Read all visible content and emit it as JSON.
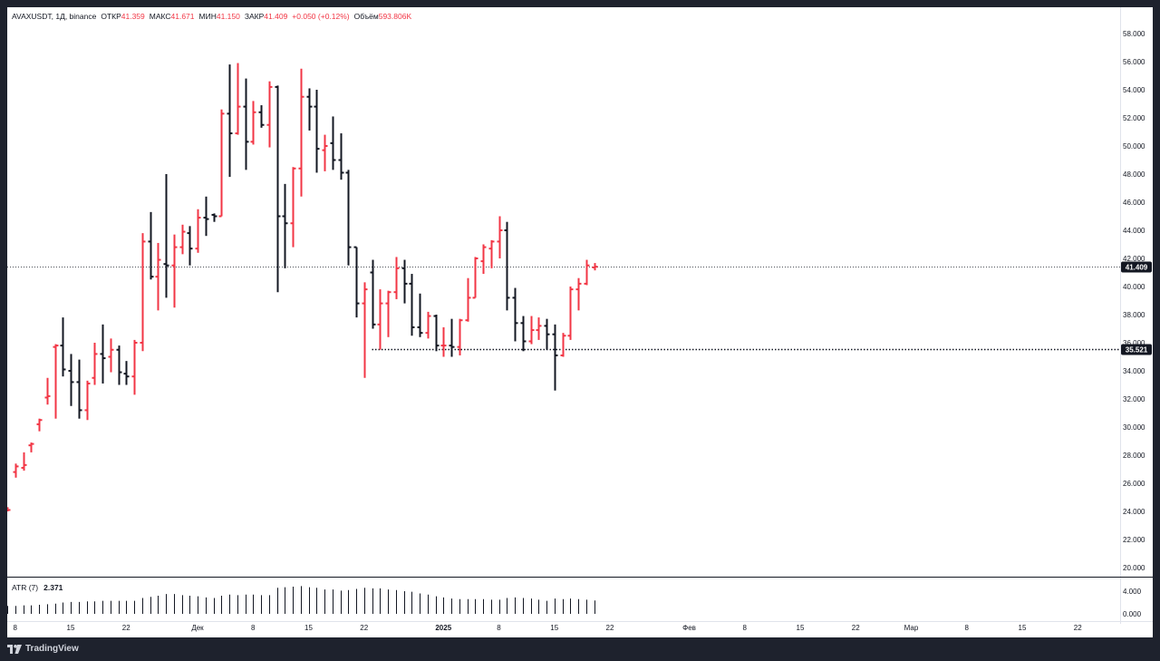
{
  "header": {
    "symbol": "AVAXUSDT, 1Д, binance",
    "open_label": "ОТКР",
    "open_value": "41.359",
    "high_label": "МАКС",
    "high_value": "41.671",
    "low_label": "МИН",
    "low_value": "41.150",
    "close_label": "ЗАКР",
    "close_value": "41.409",
    "change_value": "+0.050 (+0.12%)",
    "volume_label": "Объём",
    "volume_value": "593.806K"
  },
  "atr_indicator": {
    "label": "ATR (7)",
    "value": "2.371",
    "axis_labels": [
      "4.000",
      "0.000"
    ]
  },
  "branding": {
    "logo_text": "TradingView",
    "logo_icon": "tradingview-logo-icon"
  },
  "colors": {
    "up": "#f23645",
    "down": "#131722",
    "background": "#ffffff",
    "frame": "#1e222d",
    "axis_text": "#131722"
  },
  "chart_data": {
    "type": "ohlc",
    "timeframe": "1D",
    "start_date": "2024-11-07",
    "ylim": [
      19.0,
      59.0
    ],
    "y_tick_labels": [
      "20.000",
      "22.000",
      "24.000",
      "26.000",
      "28.000",
      "30.000",
      "32.000",
      "34.000",
      "36.000",
      "38.000",
      "40.000",
      "42.000",
      "44.000",
      "46.000",
      "48.000",
      "50.000",
      "52.000",
      "54.000",
      "56.000",
      "58.000"
    ],
    "x_tick_labels": [
      {
        "label": "8",
        "date": "2024-11-08"
      },
      {
        "label": "15",
        "date": "2024-11-15"
      },
      {
        "label": "22",
        "date": "2024-11-22"
      },
      {
        "label": "Дек",
        "date": "2024-12-01"
      },
      {
        "label": "8",
        "date": "2024-12-08"
      },
      {
        "label": "15",
        "date": "2024-12-15"
      },
      {
        "label": "22",
        "date": "2024-12-22"
      },
      {
        "label": "2025",
        "date": "2025-01-01"
      },
      {
        "label": "8",
        "date": "2025-01-08"
      },
      {
        "label": "15",
        "date": "2025-01-15"
      },
      {
        "label": "22",
        "date": "2025-01-22"
      },
      {
        "label": "Фев",
        "date": "2025-02-01"
      },
      {
        "label": "8",
        "date": "2025-02-08"
      },
      {
        "label": "15",
        "date": "2025-02-15"
      },
      {
        "label": "22",
        "date": "2025-02-22"
      },
      {
        "label": "Мар",
        "date": "2025-03-01"
      },
      {
        "label": "8",
        "date": "2025-03-08"
      },
      {
        "label": "15",
        "date": "2025-03-15"
      },
      {
        "label": "22",
        "date": "2025-03-22"
      }
    ],
    "price_lines": [
      {
        "value": 41.409,
        "label": "41.409",
        "style": "dotted",
        "badge": "#131722"
      },
      {
        "value": 35.521,
        "label": "35.521",
        "style": "dotted-bold",
        "badge": "#131722",
        "start_date": "2024-12-23"
      }
    ],
    "candles": [
      {
        "o": 24.1,
        "h": 24.3,
        "l": 24.0,
        "c": 24.1
      },
      {
        "o": 26.8,
        "h": 27.4,
        "l": 26.4,
        "c": 27.2
      },
      {
        "o": 27.1,
        "h": 28.2,
        "l": 26.9,
        "c": 27.3
      },
      {
        "o": 28.7,
        "h": 28.9,
        "l": 28.2,
        "c": 28.8
      },
      {
        "o": 30.2,
        "h": 30.6,
        "l": 29.7,
        "c": 30.5
      },
      {
        "o": 32.1,
        "h": 33.5,
        "l": 31.6,
        "c": 32.2
      },
      {
        "o": 35.7,
        "h": 35.9,
        "l": 30.6,
        "c": 35.8
      },
      {
        "o": 35.8,
        "h": 37.8,
        "l": 33.6,
        "c": 34.1
      },
      {
        "o": 34.0,
        "h": 35.2,
        "l": 31.5,
        "c": 33.2
      },
      {
        "o": 33.2,
        "h": 34.8,
        "l": 30.6,
        "c": 31.2
      },
      {
        "o": 31.2,
        "h": 33.3,
        "l": 30.5,
        "c": 33.1
      },
      {
        "o": 33.5,
        "h": 36.0,
        "l": 33.0,
        "c": 35.2
      },
      {
        "o": 35.2,
        "h": 37.3,
        "l": 33.1,
        "c": 34.9
      },
      {
        "o": 35.0,
        "h": 36.3,
        "l": 33.9,
        "c": 35.5
      },
      {
        "o": 35.5,
        "h": 35.8,
        "l": 33.0,
        "c": 33.9
      },
      {
        "o": 33.8,
        "h": 34.7,
        "l": 33.0,
        "c": 33.6
      },
      {
        "o": 33.6,
        "h": 36.2,
        "l": 32.3,
        "c": 36.0
      },
      {
        "o": 36.0,
        "h": 43.8,
        "l": 35.4,
        "c": 43.2
      },
      {
        "o": 43.2,
        "h": 45.3,
        "l": 40.5,
        "c": 40.7
      },
      {
        "o": 40.7,
        "h": 43.1,
        "l": 38.3,
        "c": 41.9
      },
      {
        "o": 41.6,
        "h": 48.0,
        "l": 39.2,
        "c": 41.5
      },
      {
        "o": 41.5,
        "h": 43.7,
        "l": 38.5,
        "c": 42.8
      },
      {
        "o": 42.8,
        "h": 44.4,
        "l": 42.3,
        "c": 43.9
      },
      {
        "o": 43.8,
        "h": 44.3,
        "l": 41.5,
        "c": 42.7
      },
      {
        "o": 42.7,
        "h": 45.5,
        "l": 42.4,
        "c": 44.9
      },
      {
        "o": 44.9,
        "h": 46.4,
        "l": 43.6,
        "c": 44.8
      },
      {
        "o": 45.1,
        "h": 45.2,
        "l": 44.6,
        "c": 45.0
      },
      {
        "o": 45.0,
        "h": 52.6,
        "l": 45.0,
        "c": 52.3
      },
      {
        "o": 52.3,
        "h": 55.8,
        "l": 47.8,
        "c": 50.9
      },
      {
        "o": 50.9,
        "h": 55.9,
        "l": 50.8,
        "c": 52.8
      },
      {
        "o": 52.8,
        "h": 54.8,
        "l": 48.3,
        "c": 50.3
      },
      {
        "o": 50.3,
        "h": 53.2,
        "l": 50.1,
        "c": 52.4
      },
      {
        "o": 52.4,
        "h": 52.9,
        "l": 51.3,
        "c": 51.5
      },
      {
        "o": 51.5,
        "h": 54.6,
        "l": 49.9,
        "c": 54.2
      },
      {
        "o": 54.2,
        "h": 54.3,
        "l": 39.6,
        "c": 45.0
      },
      {
        "o": 45.0,
        "h": 47.3,
        "l": 41.3,
        "c": 44.5
      },
      {
        "o": 44.5,
        "h": 48.5,
        "l": 42.8,
        "c": 48.4
      },
      {
        "o": 48.4,
        "h": 55.5,
        "l": 46.4,
        "c": 53.5
      },
      {
        "o": 53.5,
        "h": 54.1,
        "l": 51.1,
        "c": 52.8
      },
      {
        "o": 52.8,
        "h": 54.0,
        "l": 48.1,
        "c": 49.8
      },
      {
        "o": 49.7,
        "h": 50.8,
        "l": 48.2,
        "c": 50.0
      },
      {
        "o": 50.2,
        "h": 52.1,
        "l": 48.3,
        "c": 49.0
      },
      {
        "o": 49.0,
        "h": 50.9,
        "l": 47.6,
        "c": 48.1
      },
      {
        "o": 48.1,
        "h": 48.3,
        "l": 41.5,
        "c": 42.8
      },
      {
        "o": 42.8,
        "h": 42.8,
        "l": 37.8,
        "c": 38.8
      },
      {
        "o": 38.8,
        "h": 40.3,
        "l": 33.5,
        "c": 39.8
      },
      {
        "o": 41.0,
        "h": 41.9,
        "l": 37.0,
        "c": 37.3
      },
      {
        "o": 37.3,
        "h": 39.8,
        "l": 35.5,
        "c": 38.8
      },
      {
        "o": 38.8,
        "h": 39.7,
        "l": 36.4,
        "c": 39.6
      },
      {
        "o": 39.6,
        "h": 42.1,
        "l": 39.1,
        "c": 41.3
      },
      {
        "o": 41.3,
        "h": 41.9,
        "l": 38.8,
        "c": 40.2
      },
      {
        "o": 40.2,
        "h": 40.9,
        "l": 36.5,
        "c": 37.1
      },
      {
        "o": 37.1,
        "h": 39.5,
        "l": 36.4,
        "c": 36.7
      },
      {
        "o": 36.7,
        "h": 38.2,
        "l": 36.3,
        "c": 37.9
      },
      {
        "o": 37.9,
        "h": 38.0,
        "l": 35.4,
        "c": 35.8
      },
      {
        "o": 35.8,
        "h": 37.1,
        "l": 35.0,
        "c": 35.8
      },
      {
        "o": 35.8,
        "h": 37.7,
        "l": 35.0,
        "c": 35.7
      },
      {
        "o": 35.7,
        "h": 37.7,
        "l": 35.1,
        "c": 37.6
      },
      {
        "o": 37.6,
        "h": 40.6,
        "l": 37.5,
        "c": 39.2
      },
      {
        "o": 39.2,
        "h": 42.1,
        "l": 39.2,
        "c": 42.0
      },
      {
        "o": 41.8,
        "h": 43.0,
        "l": 40.9,
        "c": 42.8
      },
      {
        "o": 42.7,
        "h": 43.3,
        "l": 41.3,
        "c": 43.2
      },
      {
        "o": 43.2,
        "h": 45.0,
        "l": 42.0,
        "c": 44.0
      },
      {
        "o": 44.0,
        "h": 44.6,
        "l": 38.3,
        "c": 39.2
      },
      {
        "o": 39.2,
        "h": 39.9,
        "l": 36.1,
        "c": 37.4
      },
      {
        "o": 37.4,
        "h": 37.9,
        "l": 35.4,
        "c": 36.1
      },
      {
        "o": 36.1,
        "h": 37.9,
        "l": 35.9,
        "c": 36.9
      },
      {
        "o": 36.9,
        "h": 37.8,
        "l": 36.2,
        "c": 37.2
      },
      {
        "o": 37.2,
        "h": 37.7,
        "l": 35.5,
        "c": 36.6
      },
      {
        "o": 36.6,
        "h": 37.3,
        "l": 32.6,
        "c": 35.1
      },
      {
        "o": 35.1,
        "h": 36.7,
        "l": 35.0,
        "c": 36.5
      },
      {
        "o": 36.5,
        "h": 40.0,
        "l": 36.2,
        "c": 39.8
      },
      {
        "o": 39.8,
        "h": 40.6,
        "l": 38.3,
        "c": 40.2
      },
      {
        "o": 40.2,
        "h": 41.9,
        "l": 40.1,
        "c": 41.5
      },
      {
        "o": 41.359,
        "h": 41.671,
        "l": 41.15,
        "c": 41.409
      }
    ],
    "atr": [
      1.4,
      1.4,
      1.5,
      1.5,
      1.6,
      1.7,
      1.8,
      2.0,
      2.1,
      2.1,
      2.2,
      2.2,
      2.3,
      2.3,
      2.3,
      2.3,
      2.3,
      2.8,
      3.0,
      3.2,
      3.5,
      3.5,
      3.3,
      3.2,
      3.1,
      2.9,
      2.8,
      3.2,
      3.4,
      3.3,
      3.4,
      3.4,
      3.3,
      3.3,
      4.6,
      4.7,
      4.8,
      4.9,
      4.7,
      4.6,
      4.3,
      4.3,
      4.1,
      4.2,
      4.4,
      4.6,
      4.5,
      4.5,
      4.3,
      4.2,
      4.0,
      3.9,
      3.6,
      3.4,
      3.1,
      2.9,
      2.7,
      2.6,
      2.6,
      2.6,
      2.6,
      2.5,
      2.5,
      2.8,
      2.9,
      2.8,
      2.7,
      2.5,
      2.3,
      2.7,
      2.6,
      2.7,
      2.6,
      2.5,
      2.37
    ]
  }
}
